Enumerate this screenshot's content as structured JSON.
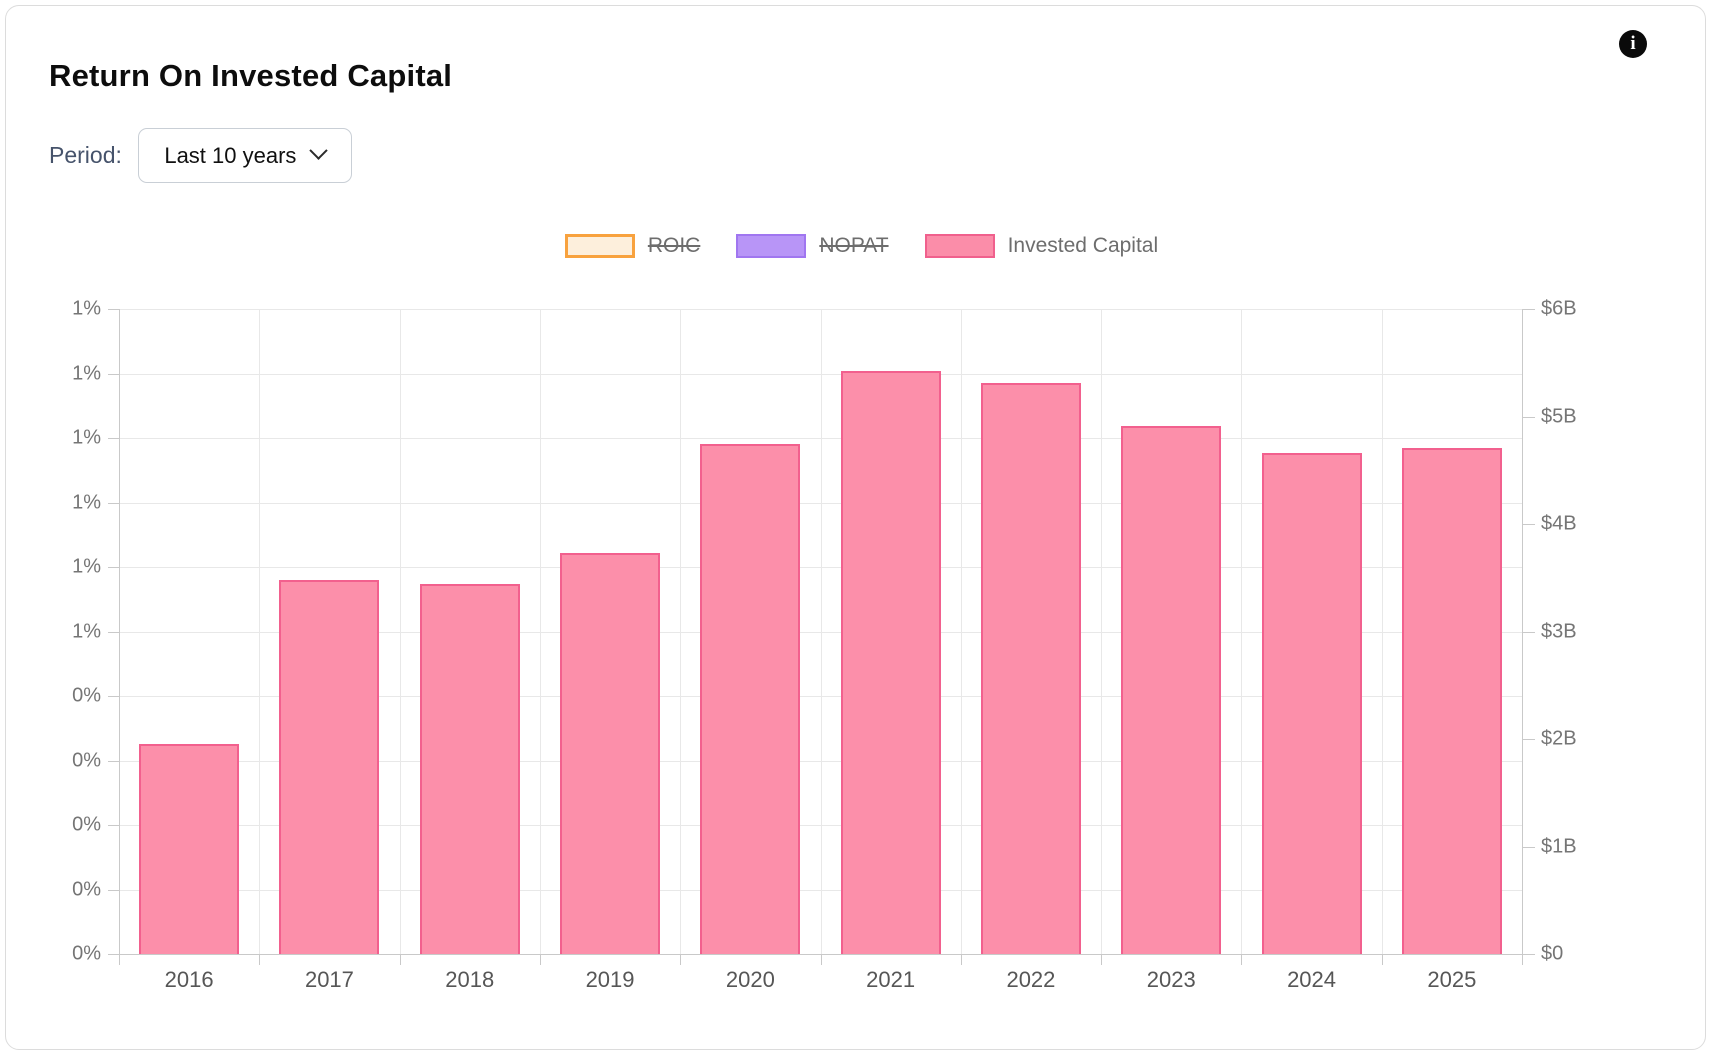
{
  "card": {
    "title": "Return On Invested Capital",
    "info_glyph": "i"
  },
  "period": {
    "label": "Period:",
    "value": "Last 10 years"
  },
  "legend": [
    {
      "label": "ROIC",
      "fill": "#fdefdc",
      "border": "#f8a23e",
      "border_width": 3,
      "struck": true
    },
    {
      "label": "NOPAT",
      "fill": "#b895f7",
      "border": "#a076f0",
      "border_width": 2,
      "struck": true
    },
    {
      "label": "Invested Capital",
      "fill": "#fb8da9",
      "border": "#f0608d",
      "border_width": 2,
      "struck": false
    }
  ],
  "chart_data": {
    "type": "bar",
    "title": "Return On Invested Capital",
    "categories": [
      "2016",
      "2017",
      "2018",
      "2019",
      "2020",
      "2021",
      "2022",
      "2023",
      "2024",
      "2025"
    ],
    "series": [
      {
        "name": "Invested Capital",
        "unit": "USD billions",
        "values": [
          1.95,
          3.48,
          3.44,
          3.73,
          4.74,
          5.42,
          5.31,
          4.91,
          4.66,
          4.71
        ],
        "fill": "#fc8faa",
        "border": "#f2608e"
      }
    ],
    "hidden_series": [
      "ROIC",
      "NOPAT"
    ],
    "left_axis": {
      "ticks_top_to_bottom": [
        "1%",
        "1%",
        "1%",
        "1%",
        "1%",
        "1%",
        "0%",
        "0%",
        "0%",
        "0%",
        "0%"
      ]
    },
    "right_axis": {
      "ticks_top_to_bottom": [
        "$6B",
        "$5B",
        "$4B",
        "$3B",
        "$2B",
        "$1B",
        "$0"
      ],
      "min": 0,
      "max": 6
    },
    "grid": true,
    "legend_position": "top"
  }
}
